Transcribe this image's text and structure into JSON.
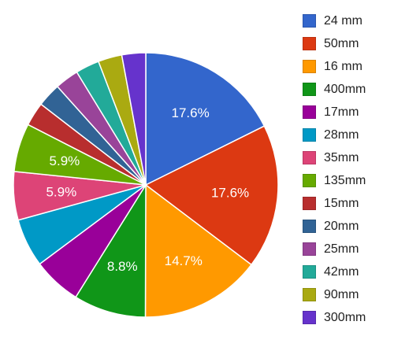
{
  "chart_data": {
    "type": "pie",
    "legend_position": "right",
    "categories": [
      "24 mm",
      "50mm",
      "16 mm",
      "400mm",
      "17mm",
      "28mm",
      "35mm",
      "135mm",
      "15mm",
      "20mm",
      "25mm",
      "42mm",
      "90mm",
      "300mm"
    ],
    "values": [
      17.6,
      17.6,
      14.7,
      8.8,
      5.9,
      5.9,
      5.9,
      5.9,
      2.9,
      2.9,
      2.9,
      2.9,
      2.9,
      2.9
    ],
    "data_labels": [
      "17.6%",
      "17.6%",
      "14.7%",
      "8.8%",
      "",
      "",
      "5.9%",
      "5.9%",
      "",
      "",
      "",
      "",
      "",
      ""
    ],
    "colors": [
      "#3366cc",
      "#dc3912",
      "#ff9900",
      "#109618",
      "#990099",
      "#0099c6",
      "#dd4477",
      "#66aa00",
      "#b82e2e",
      "#316395",
      "#994499",
      "#22aa99",
      "#aaaa11",
      "#6633cc"
    ]
  }
}
